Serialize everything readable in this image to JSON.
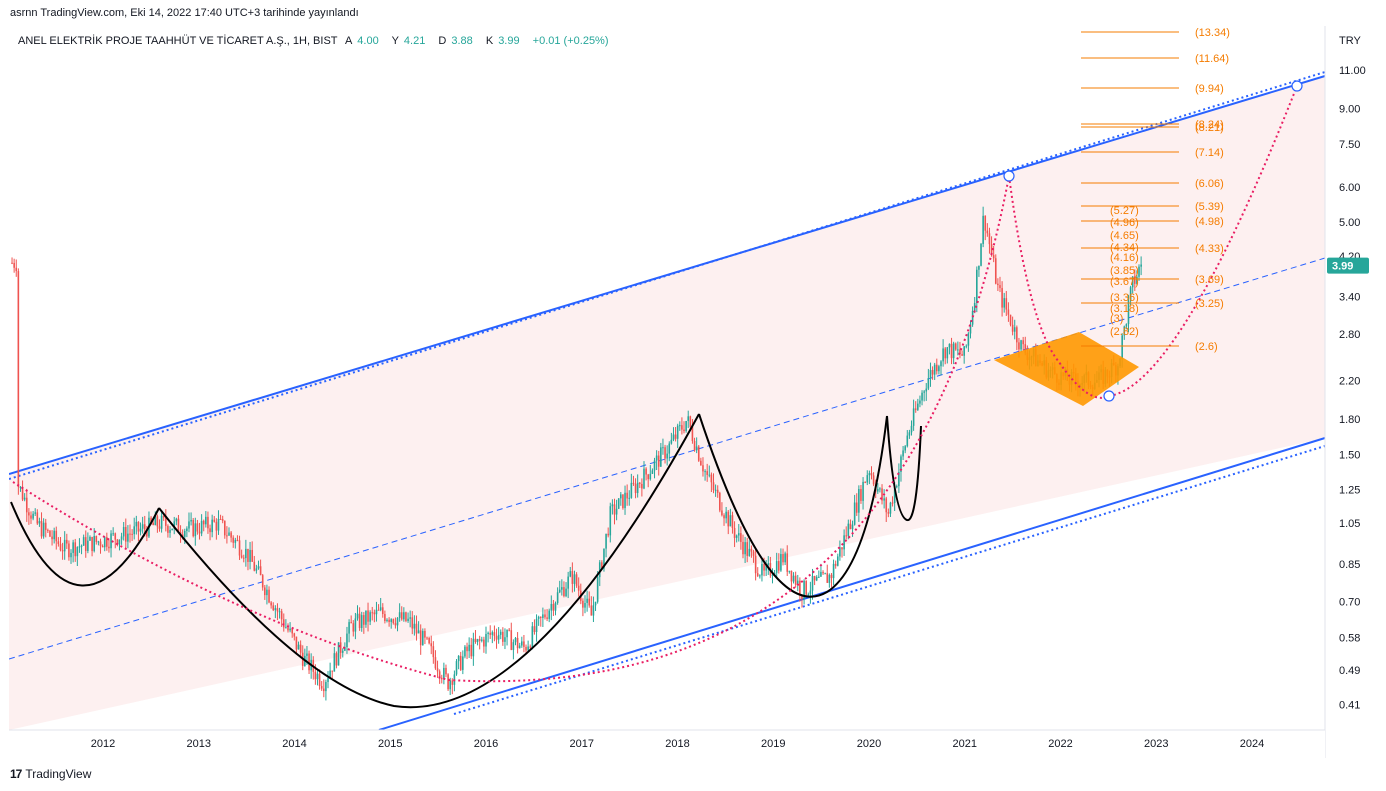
{
  "header": {
    "published": "asrnn TradingView.com, Eki 14, 2022 17:40 UTC+3 tarihinde yayınlandı"
  },
  "legend": {
    "symbol": "ANEL ELEKTRİK PROJE TAAHHÜT VE TİCARET A.Ş., 1H, BIST",
    "open_label": "A",
    "open": "4.00",
    "high_label": "Y",
    "high": "4.21",
    "low_label": "D",
    "low": "3.88",
    "close_label": "K",
    "close": "3.99",
    "change": "+0.01 (+0.25%)"
  },
  "price_axis": {
    "currency": "TRY",
    "ticks": [
      "11.00",
      "9.00",
      "7.50",
      "6.00",
      "5.00",
      "4.20",
      "3.40",
      "2.80",
      "2.20",
      "1.80",
      "1.50",
      "1.25",
      "1.05",
      "0.85",
      "0.70",
      "0.58",
      "0.49",
      "0.41"
    ],
    "last_price": "3.99"
  },
  "time_axis": {
    "ticks": [
      "2012",
      "2013",
      "2014",
      "2015",
      "2016",
      "2017",
      "2018",
      "2019",
      "2020",
      "2021",
      "2022",
      "2023",
      "2024"
    ]
  },
  "fib_right": [
    "(13.34)",
    "(11.64)",
    "(9.94)",
    "(8.24)",
    "(8.21)",
    "(7.14)",
    "(6.06)",
    "(5.39)",
    "(4.98)",
    "(4.33)",
    "(3.69)",
    "(3.25)",
    "(2.6)"
  ],
  "fib_inner": [
    "(5.27)",
    "(4.96)",
    "(4.65)",
    "(4.34)",
    "(4.16)",
    "(3.85)",
    "(3.67)",
    "(3.36)",
    "(3.18)",
    "(3)",
    "(2.82)"
  ],
  "colors": {
    "up": "#26a69a",
    "down": "#ef5350",
    "channel": "#2962ff",
    "fib": "#f57c00",
    "curve": "#e91e63",
    "badge": "#26a69a"
  },
  "footer": {
    "brand": "TradingView"
  }
}
